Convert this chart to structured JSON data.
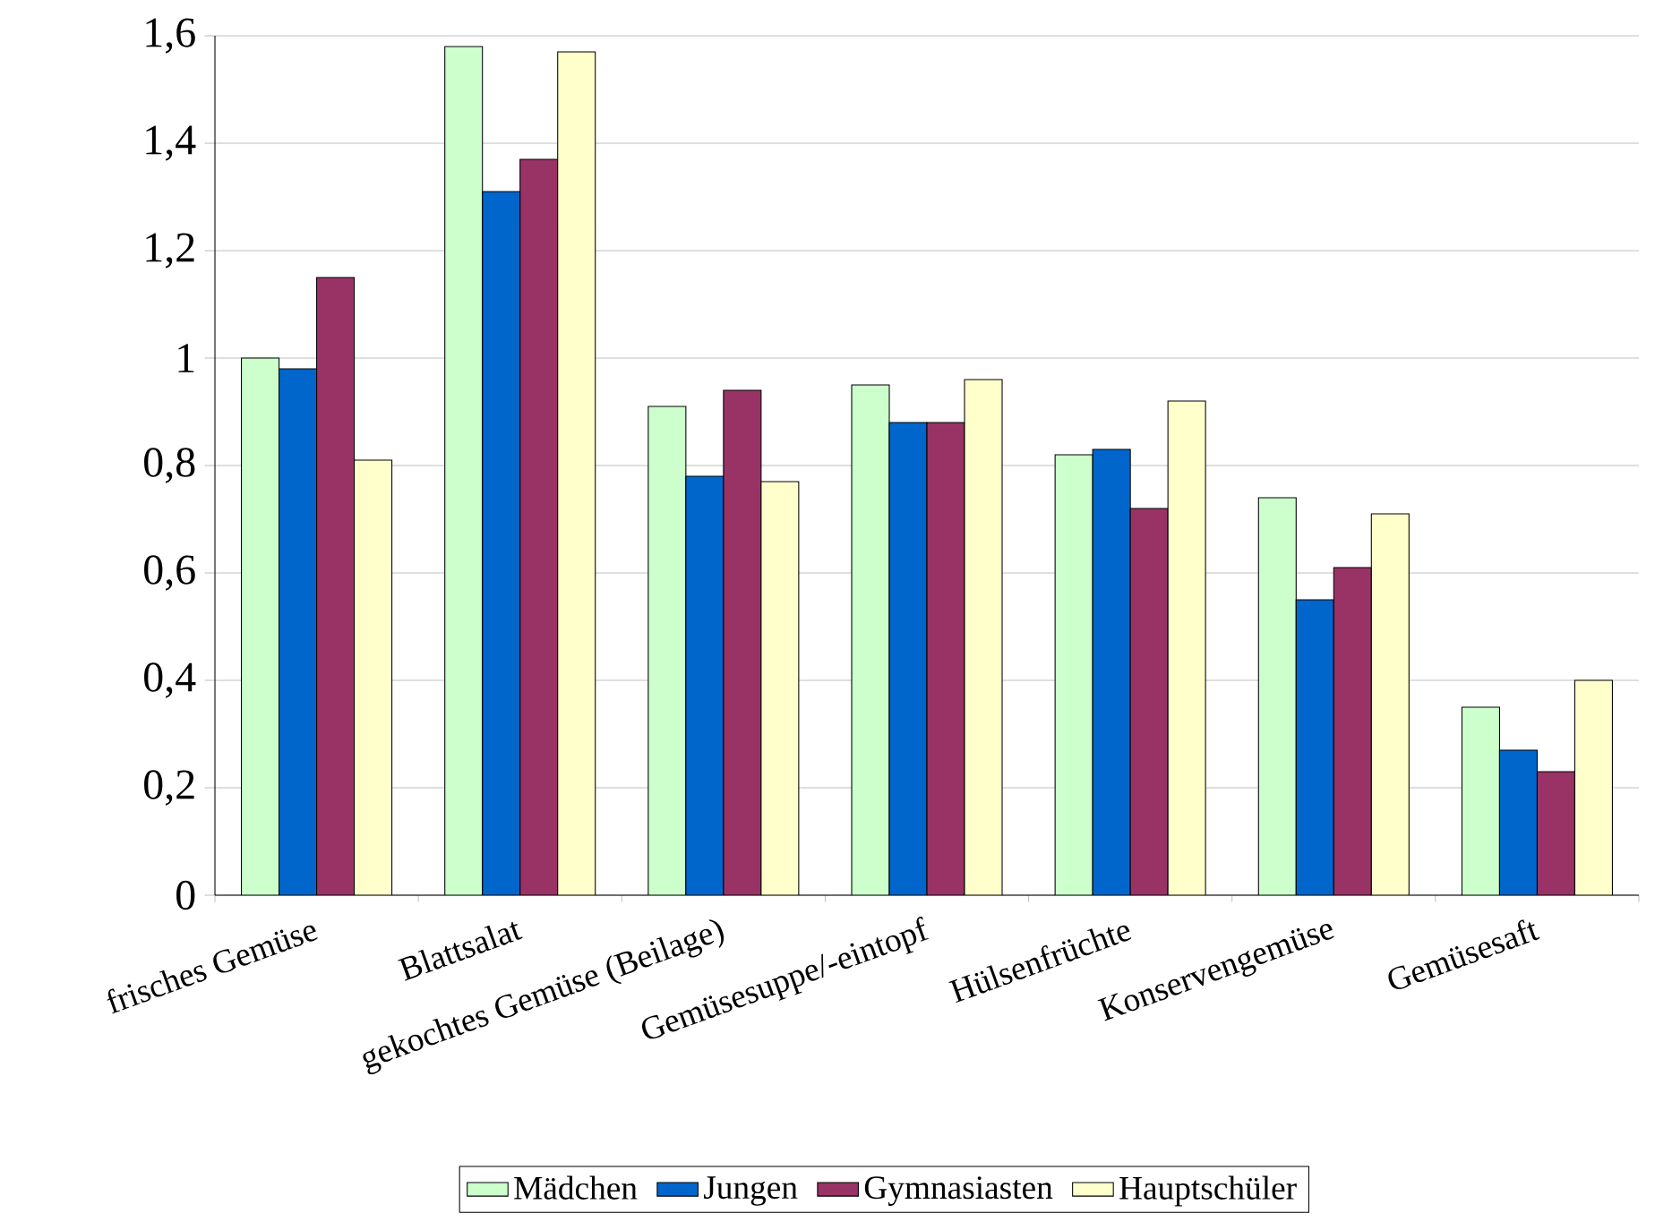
{
  "chart_data": {
    "type": "bar",
    "categories": [
      "frisches Gemüse",
      "Blattsalat",
      "gekochtes Gemüse (Beilage)",
      "Gemüsesuppe/-eintopf",
      "Hülsenfrüchte",
      "Konservengemüse",
      "Gemüsesaft"
    ],
    "series": [
      {
        "name": "Mädchen",
        "color": "#ccffcc",
        "values": [
          1.0,
          1.58,
          0.91,
          0.95,
          0.82,
          0.74,
          0.35
        ]
      },
      {
        "name": "Jungen",
        "color": "#0066cc",
        "values": [
          0.98,
          1.31,
          0.78,
          0.88,
          0.83,
          0.55,
          0.27
        ]
      },
      {
        "name": "Gymnasiasten",
        "color": "#993366",
        "values": [
          1.15,
          1.37,
          0.94,
          0.88,
          0.72,
          0.61,
          0.23
        ]
      },
      {
        "name": "Hauptschüler",
        "color": "#ffffcc",
        "values": [
          0.81,
          1.57,
          0.77,
          0.96,
          0.92,
          0.71,
          0.4
        ]
      }
    ],
    "ylim": [
      0,
      1.6
    ],
    "yticks": [
      0,
      {
        "value": 0.2,
        "label": "0,2"
      },
      {
        "value": 0.4,
        "label": "0,4"
      },
      {
        "value": 0.6,
        "label": "0,6"
      },
      {
        "value": 0.8,
        "label": "0,8"
      },
      1,
      {
        "value": 1.2,
        "label": "1,2"
      },
      {
        "value": 1.4,
        "label": "1,4"
      },
      {
        "value": 1.6,
        "label": "1,6"
      }
    ],
    "grid": "y",
    "legend": "bottom"
  }
}
